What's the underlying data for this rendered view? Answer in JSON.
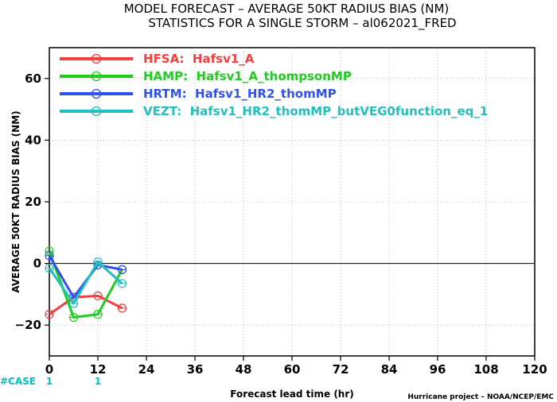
{
  "chart_data": {
    "type": "line",
    "title_line1": "MODEL FORECAST – AVERAGE 50KT RADIUS BIAS (NM)",
    "title_line2": "STATISTICS FOR A SINGLE STORM – al062021_FRED",
    "xlabel": "Forecast lead time (hr)",
    "ylabel": "AVERAGE 50KT RADIUS BIAS (NM)",
    "xlim": [
      0,
      120
    ],
    "ylim": [
      -30,
      70
    ],
    "xticks": [
      0,
      12,
      24,
      36,
      48,
      60,
      72,
      84,
      96,
      108,
      120
    ],
    "yticks": [
      -20,
      0,
      20,
      40,
      60
    ],
    "zero_line": true,
    "legend_position": "top-left",
    "series": [
      {
        "name": "HFSA:  Hafsv1_A",
        "color": "#F04040",
        "x": [
          0,
          6,
          12,
          18
        ],
        "values": [
          -16.5,
          -11,
          -10.5,
          -14.5
        ]
      },
      {
        "name": "HAMP:  Hafsv1_A_thompsonMP",
        "color": "#20CC20",
        "x": [
          0,
          6,
          12,
          18
        ],
        "values": [
          4,
          -17.5,
          -16.5,
          -2
        ]
      },
      {
        "name": "HRTM:  Hafsv1_HR2_thomMP",
        "color": "#3050F0",
        "x": [
          0,
          6,
          12,
          18
        ],
        "values": [
          2.5,
          -11,
          -0.5,
          -2
        ]
      },
      {
        "name": "VEZT:  Hafsv1_HR2_thomMP_butVEG0function_eq_1",
        "color": "#20C0C0",
        "x": [
          0,
          6,
          12,
          18
        ],
        "values": [
          -1.5,
          -13,
          0.5,
          -6.5
        ]
      }
    ],
    "case_counts": {
      "label": "#CASE",
      "x": [
        0,
        12
      ],
      "values": [
        "1",
        "1"
      ]
    }
  },
  "credit": "Hurricane project – NOAA/NCEP/EMC"
}
